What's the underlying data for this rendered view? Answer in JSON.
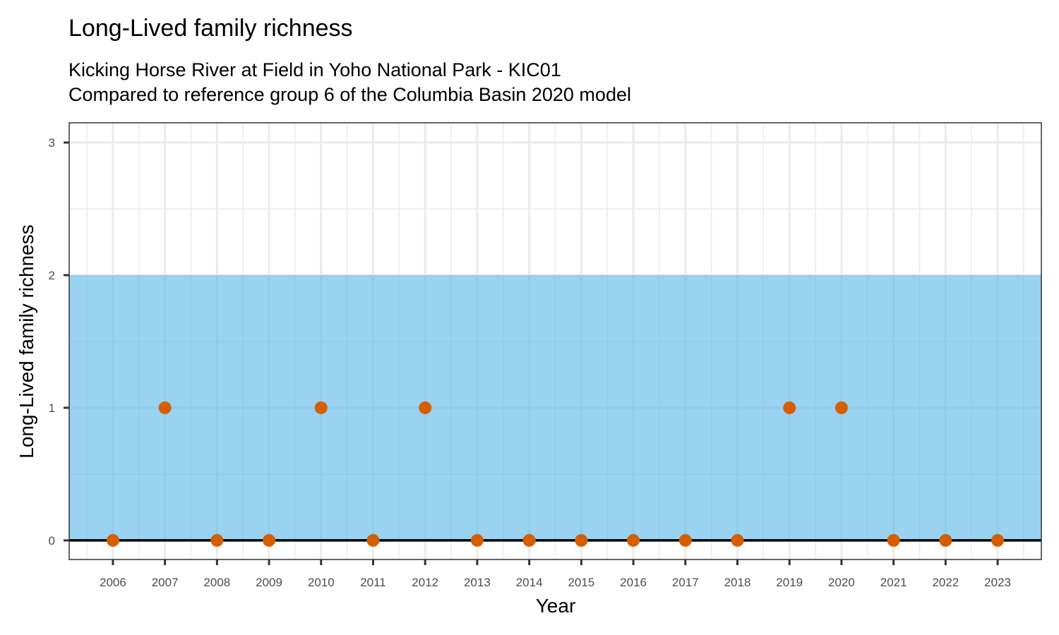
{
  "chart_data": {
    "type": "scatter",
    "title": "Long-Lived family richness",
    "subtitle_lines": [
      "Kicking Horse River at Field in Yoho National Park - KIC01",
      "Compared to reference group 6 of the Columbia Basin 2020 model"
    ],
    "xlabel": "Year",
    "ylabel": "Long-Lived family richness",
    "x": [
      2006,
      2007,
      2008,
      2009,
      2010,
      2011,
      2012,
      2013,
      2014,
      2015,
      2016,
      2017,
      2018,
      2019,
      2020,
      2021,
      2022,
      2023
    ],
    "y": [
      0,
      1,
      0,
      0,
      1,
      0,
      1,
      0,
      0,
      0,
      0,
      0,
      0,
      1,
      1,
      0,
      0,
      0
    ],
    "xlim": [
      2005.16,
      2023.84
    ],
    "ylim": [
      -0.144,
      3.149
    ],
    "yticks": [
      0,
      1,
      2,
      3
    ],
    "xticks": [
      2006,
      2007,
      2008,
      2009,
      2010,
      2011,
      2012,
      2013,
      2014,
      2015,
      2016,
      2017,
      2018,
      2019,
      2020,
      2021,
      2022,
      2023
    ],
    "reference_band": [
      0,
      2
    ],
    "reference_line": 0,
    "grid": true,
    "colors": {
      "point": "#D55E00",
      "band": "#56B4E9",
      "line": "#000000"
    }
  }
}
